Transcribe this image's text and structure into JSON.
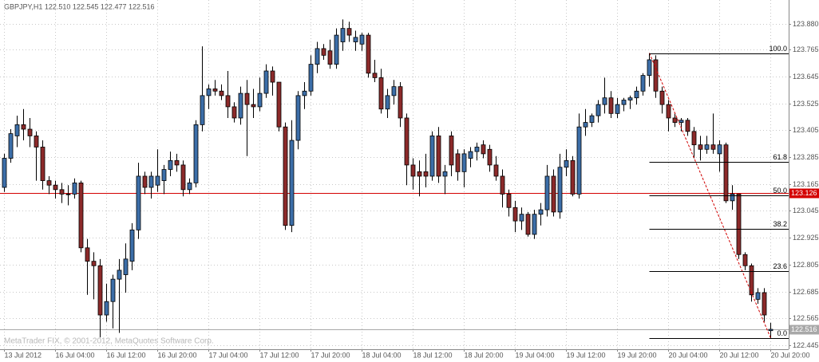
{
  "chart_data": {
    "type": "candlestick",
    "title": "GBPJPY,H1  122.510 122.545 122.477 122.516",
    "watermark": "MetaTrader FIX, © 2001-2012, MetaQuotes Software Corp.",
    "categories": [
      "13 Jul 2012",
      null,
      null,
      null,
      null,
      null,
      null,
      null,
      "16 Jul 04:00",
      null,
      null,
      null,
      null,
      null,
      null,
      null,
      "16 Jul 12:00",
      null,
      null,
      null,
      null,
      null,
      null,
      null,
      "16 Jul 20:00",
      null,
      null,
      null,
      null,
      null,
      null,
      null,
      "17 Jul 04:00",
      null,
      null,
      null,
      null,
      null,
      null,
      null,
      "17 Jul 12:00",
      null,
      null,
      null,
      null,
      null,
      null,
      null,
      "17 Jul 20:00",
      null,
      null,
      null,
      null,
      null,
      null,
      null,
      "18 Jul 04:00",
      null,
      null,
      null,
      null,
      null,
      null,
      null,
      "18 Jul 12:00",
      null,
      null,
      null,
      null,
      null,
      null,
      null,
      "18 Jul 20:00",
      null,
      null,
      null,
      null,
      null,
      null,
      null,
      "19 Jul 04:00",
      null,
      null,
      null,
      null,
      null,
      null,
      null,
      "19 Jul 12:00",
      null,
      null,
      null,
      null,
      null,
      null,
      null,
      "19 Jul 20:00",
      null,
      null,
      null,
      null,
      null,
      null,
      null,
      "20 Jul 04:00",
      null,
      null,
      null,
      null,
      null,
      null,
      null,
      "20 Jul 12:00",
      null,
      null,
      null,
      null,
      null,
      null,
      null,
      "20 Jul 20:00"
    ],
    "open": [
      123.15,
      123.28,
      123.38,
      123.43,
      123.41,
      123.38,
      123.33,
      123.18,
      123.16,
      123.14,
      123.12,
      123.12,
      123.17,
      122.88,
      122.82,
      122.8,
      122.58,
      122.64,
      122.74,
      122.76,
      122.82,
      122.96,
      123.2,
      123.15,
      123.16,
      123.18,
      123.23,
      123.27,
      123.25,
      123.14,
      123.17,
      123.43,
      123.56,
      123.59,
      123.58,
      123.56,
      123.51,
      123.46,
      123.57,
      123.52,
      123.51,
      123.57,
      123.67,
      123.62,
      123.42,
      122.98,
      123.36,
      123.56,
      123.58,
      123.7,
      123.77,
      123.76,
      123.7,
      123.8,
      123.86,
      123.8,
      123.79,
      123.83,
      123.66,
      123.64,
      123.5,
      123.56,
      123.6,
      123.46,
      123.25,
      123.22,
      123.22,
      123.2,
      123.38,
      123.2,
      123.38,
      123.3,
      123.22,
      123.28,
      123.31,
      123.34,
      123.32,
      123.25,
      123.2,
      123.12,
      123.06,
      123.0,
      123.03,
      122.94,
      123.03,
      123.05,
      123.2,
      123.04,
      123.24,
      123.27,
      123.12,
      123.42,
      123.44,
      123.47,
      123.52,
      123.55,
      123.48,
      123.52,
      123.54,
      123.55,
      123.58,
      123.65,
      123.72,
      123.58,
      123.52,
      123.46,
      123.44,
      123.45,
      123.4,
      123.34,
      123.32,
      123.34,
      123.3,
      123.34,
      123.09,
      123.12,
      122.85,
      122.8,
      122.65,
      122.68,
      122.51
    ],
    "high": [
      123.3,
      123.41,
      123.47,
      123.5,
      123.46,
      123.4,
      123.36,
      123.2,
      123.18,
      123.17,
      123.16,
      123.19,
      123.18,
      122.92,
      122.86,
      122.83,
      122.72,
      122.76,
      122.83,
      122.9,
      122.99,
      123.26,
      123.22,
      123.22,
      123.32,
      123.25,
      123.31,
      123.3,
      123.27,
      123.19,
      123.45,
      123.78,
      123.61,
      123.63,
      123.61,
      123.67,
      123.53,
      123.6,
      123.63,
      123.59,
      123.64,
      123.7,
      123.69,
      123.62,
      123.44,
      123.45,
      123.58,
      123.62,
      123.74,
      123.8,
      123.79,
      123.81,
      123.86,
      123.9,
      123.89,
      123.85,
      123.84,
      123.84,
      123.72,
      123.68,
      123.59,
      123.63,
      123.62,
      123.48,
      123.28,
      123.27,
      123.3,
      123.4,
      123.42,
      123.25,
      123.4,
      123.32,
      123.32,
      123.33,
      123.35,
      123.36,
      123.34,
      123.29,
      123.23,
      123.14,
      123.09,
      123.06,
      123.04,
      123.05,
      123.08,
      123.25,
      123.23,
      123.3,
      123.32,
      123.29,
      123.48,
      123.5,
      123.48,
      123.54,
      123.64,
      123.58,
      123.55,
      123.55,
      123.56,
      123.6,
      123.66,
      123.75,
      123.74,
      123.6,
      123.54,
      123.48,
      123.46,
      123.46,
      123.42,
      123.38,
      123.38,
      123.48,
      123.36,
      123.35,
      123.16,
      123.12,
      122.86,
      122.81,
      122.7,
      122.7,
      122.545
    ],
    "low": [
      123.13,
      123.26,
      123.33,
      123.36,
      123.33,
      123.18,
      123.14,
      123.12,
      123.1,
      123.08,
      123.07,
      123.1,
      122.86,
      122.67,
      122.65,
      122.48,
      122.55,
      122.52,
      122.5,
      122.68,
      122.78,
      122.92,
      123.12,
      123.1,
      123.13,
      123.12,
      123.2,
      123.22,
      123.11,
      123.12,
      123.15,
      123.4,
      123.5,
      123.56,
      123.54,
      123.46,
      123.44,
      123.43,
      123.29,
      123.46,
      123.49,
      123.55,
      123.56,
      123.4,
      122.96,
      122.95,
      123.32,
      123.5,
      123.56,
      123.66,
      123.72,
      123.68,
      123.68,
      123.76,
      123.8,
      123.76,
      123.76,
      123.64,
      123.62,
      123.48,
      123.46,
      123.52,
      123.42,
      123.16,
      123.14,
      123.11,
      123.15,
      123.18,
      123.17,
      123.12,
      123.2,
      123.18,
      123.15,
      123.24,
      123.27,
      123.28,
      123.22,
      123.18,
      123.06,
      123.02,
      122.95,
      122.96,
      122.93,
      122.92,
      122.98,
      123.02,
      123.02,
      123.01,
      123.2,
      123.11,
      123.1,
      123.38,
      123.42,
      123.44,
      123.48,
      123.46,
      123.46,
      123.49,
      123.5,
      123.52,
      123.56,
      123.6,
      123.55,
      123.48,
      123.4,
      123.42,
      123.4,
      123.38,
      123.28,
      123.27,
      123.3,
      123.3,
      123.22,
      123.08,
      123.05,
      122.83,
      122.78,
      122.64,
      122.63,
      122.55,
      122.477
    ],
    "close": [
      123.28,
      123.39,
      123.43,
      123.41,
      123.38,
      123.33,
      123.18,
      123.16,
      123.14,
      123.12,
      123.12,
      123.17,
      122.88,
      122.82,
      122.8,
      122.58,
      122.64,
      122.74,
      122.78,
      122.83,
      122.96,
      123.2,
      123.15,
      123.2,
      123.2,
      123.23,
      123.27,
      123.25,
      123.14,
      123.17,
      123.43,
      123.56,
      123.59,
      123.58,
      123.56,
      123.51,
      123.46,
      123.57,
      123.52,
      123.51,
      123.57,
      123.67,
      123.62,
      123.42,
      122.98,
      123.36,
      123.56,
      123.58,
      123.7,
      123.77,
      123.74,
      123.7,
      123.83,
      123.86,
      123.83,
      123.82,
      123.83,
      123.66,
      123.64,
      123.5,
      123.56,
      123.6,
      123.46,
      123.25,
      123.2,
      123.2,
      123.2,
      123.38,
      123.2,
      123.22,
      123.25,
      123.22,
      123.3,
      123.31,
      123.33,
      123.3,
      123.25,
      123.2,
      123.12,
      123.06,
      123.0,
      123.03,
      122.94,
      123.03,
      123.05,
      123.2,
      123.04,
      123.24,
      123.27,
      123.12,
      123.42,
      123.44,
      123.47,
      123.52,
      123.55,
      123.48,
      123.52,
      123.54,
      123.55,
      123.58,
      123.65,
      123.72,
      123.58,
      123.52,
      123.46,
      123.44,
      123.45,
      123.4,
      123.34,
      123.32,
      123.34,
      123.32,
      123.34,
      123.09,
      123.12,
      122.85,
      122.8,
      122.67,
      122.68,
      122.58,
      122.516
    ],
    "bull_color": "#3c6ea8",
    "bear_color": "#8c2a2a",
    "ylim": [
      122.427,
      123.987
    ],
    "yticks": [
      {
        "value": 123.88,
        "label": "123.880"
      },
      123.765,
      123.645,
      123.525,
      123.405,
      123.285,
      123.165,
      123.045,
      122.925,
      122.805,
      122.685,
      122.565,
      122.445
    ],
    "grid": true,
    "price_lines": [
      {
        "value": 123.126,
        "color": "#d40000"
      },
      {
        "value": 122.516,
        "color": "#a8a8a8"
      }
    ],
    "fibonacci": {
      "high": 123.75,
      "low": 122.477,
      "color": "#000000",
      "trend_color": "#d00000",
      "levels": [
        {
          "value": 100,
          "label": "100.0"
        },
        61.8,
        {
          "value": 50,
          "label": "50.0"
        },
        38.2,
        23.6,
        {
          "value": 0,
          "label": "0.0"
        }
      ]
    }
  }
}
